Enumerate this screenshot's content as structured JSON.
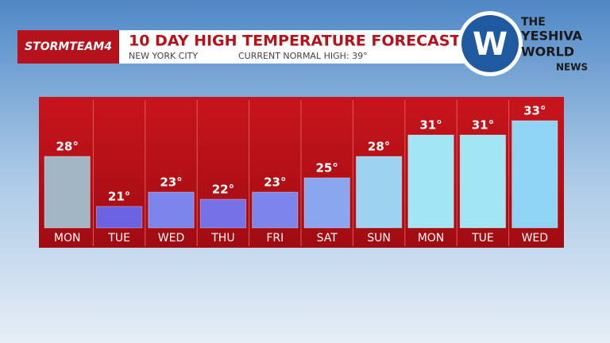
{
  "brand": "STORMTEAM4",
  "logo": [
    "THE",
    "YESHIVA",
    "WORLD",
    "NEWS"
  ],
  "chart_data": {
    "type": "bar",
    "title": "10 DAY HIGH TEMPERATURE FORECAST",
    "subtitle": "NEW YORK CITY",
    "note": "CURRENT NORMAL HIGH:  39°",
    "categories": [
      "MON",
      "TUE",
      "WED",
      "THU",
      "FRI",
      "SAT",
      "SUN",
      "MON",
      "TUE",
      "WED"
    ],
    "values": [
      28,
      21,
      23,
      22,
      23,
      25,
      28,
      31,
      31,
      33
    ],
    "value_labels": [
      "28°",
      "21°",
      "23°",
      "22°",
      "23°",
      "25°",
      "28°",
      "31°",
      "31°",
      "33°"
    ],
    "colors": [
      "#a3b6c6",
      "#6b62e2",
      "#7c86ea",
      "#7571e6",
      "#7c86ea",
      "#8aa6ee",
      "#9dd2f0",
      "#a2e6f6",
      "#a2e6f6",
      "#8fd3f5"
    ],
    "ylim": [
      18,
      36
    ]
  }
}
